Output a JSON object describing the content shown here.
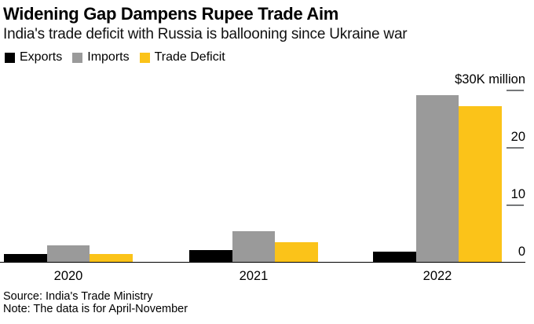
{
  "header": {
    "title": "Widening Gap Dampens Rupee Trade Aim",
    "subtitle": "India's trade deficit with Russia is ballooning since Ukraine war"
  },
  "legend": {
    "items": [
      {
        "label": "Exports",
        "color": "#000000"
      },
      {
        "label": "Imports",
        "color": "#9a9a9a"
      },
      {
        "label": "Trade Deficit",
        "color": "#fbc319"
      }
    ]
  },
  "chart_data": {
    "type": "bar",
    "title": "Widening Gap Dampens Rupee Trade Aim",
    "subtitle": "India's trade deficit with Russia is ballooning since Ukraine war",
    "categories": [
      "2020",
      "2021",
      "2022"
    ],
    "series": [
      {
        "name": "Exports",
        "color": "#000000",
        "values": [
          1.5,
          2.1,
          1.8
        ]
      },
      {
        "name": "Imports",
        "color": "#9a9a9a",
        "values": [
          3.0,
          5.4,
          29.1
        ]
      },
      {
        "name": "Trade Deficit",
        "color": "#fbc319",
        "values": [
          1.5,
          3.5,
          27.2
        ]
      }
    ],
    "y_axis": {
      "unit_label": "$30K million",
      "ticks": [
        0,
        10,
        20,
        30
      ],
      "range": [
        0,
        30
      ],
      "side": "right"
    },
    "x_axis": {
      "labels": [
        "2020",
        "2021",
        "2022"
      ]
    },
    "legend_position": "top-left",
    "grid": "short right-side tick dashes at 10, 20, 30; solid black baseline at 0"
  },
  "footer": {
    "source": "Source: India's Trade Ministry",
    "note": "Note: The data is for April-November"
  },
  "colors": {
    "background": "#ffffff",
    "axis_line": "#000000",
    "tick_dash": "#76787a",
    "text": "#000000"
  }
}
